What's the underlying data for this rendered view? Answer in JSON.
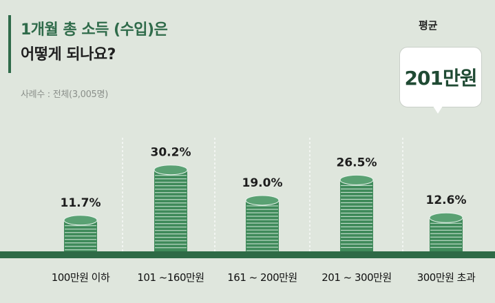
{
  "header": {
    "title_line1": "1개월 총 소득 (수입)은",
    "title_line2": "어떻게 되나요?",
    "sample": "사례수 : 전체(3,005명)"
  },
  "average": {
    "label": "평균",
    "value": "201만원"
  },
  "colors": {
    "background": "#dfe6dd",
    "accent": "#2e6a46",
    "coin": "#3f8a5a"
  },
  "chart_data": {
    "type": "bar",
    "categories": [
      "100만원 이하",
      "101 ~160만원",
      "161 ~ 200만원",
      "201 ~ 300만원",
      "300만원 초과"
    ],
    "values": [
      11.7,
      30.2,
      19.0,
      26.5,
      12.6
    ],
    "labels": [
      "11.7%",
      "30.2%",
      "19.0%",
      "26.5%",
      "12.6%"
    ],
    "ylim": [
      0,
      35
    ],
    "grid": false,
    "legend": "none"
  }
}
